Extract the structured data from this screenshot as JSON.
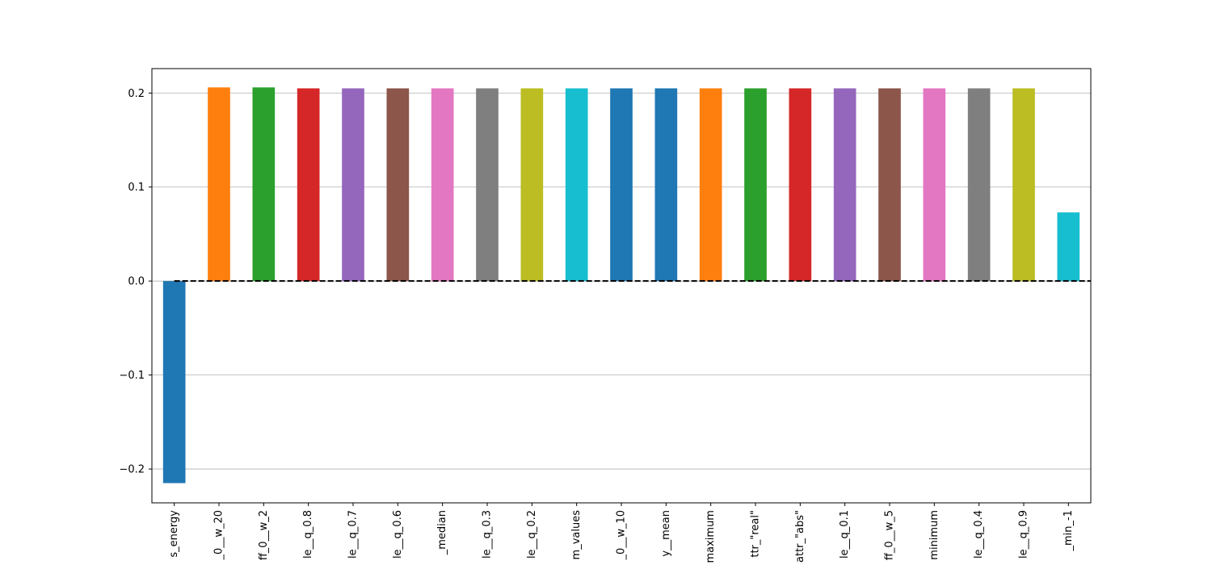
{
  "chart_data": {
    "type": "bar",
    "categories": [
      "s_energy",
      "_0__w_20",
      "ff_0__w_2",
      "le__q_0.8",
      "le__q_0.7",
      "le__q_0.6",
      "_median",
      "le__q_0.3",
      "le__q_0.2",
      "m_values",
      "_0__w_10",
      "y__mean",
      "maximum",
      "ttr_\"real\"",
      "attr_\"abs\"",
      "le__q_0.1",
      "ff_0__w_5",
      "minimum",
      "le__q_0.4",
      "le__q_0.9",
      "_min_-1"
    ],
    "values": [
      -0.215,
      0.206,
      0.206,
      0.205,
      0.205,
      0.205,
      0.205,
      0.205,
      0.205,
      0.205,
      0.205,
      0.205,
      0.205,
      0.205,
      0.205,
      0.205,
      0.205,
      0.205,
      0.205,
      0.205,
      0.073
    ],
    "colors": [
      "#1f77b4",
      "#ff7f0e",
      "#2ca02c",
      "#d62728",
      "#9467bd",
      "#8c564b",
      "#e377c2",
      "#7f7f7f",
      "#bcbd22",
      "#17becf",
      "#1f77b4",
      "#1f77b4",
      "#ff7f0e",
      "#2ca02c",
      "#d62728",
      "#9467bd",
      "#8c564b",
      "#e377c2",
      "#7f7f7f",
      "#bcbd22",
      "#17becf"
    ],
    "title": "",
    "xlabel": "",
    "ylabel": "",
    "ylim": [
      -0.236,
      0.226
    ],
    "yticks": [
      -0.2,
      -0.1,
      0.0,
      0.1,
      0.2
    ],
    "ytick_labels": [
      "−0.2",
      "−0.1",
      "0.0",
      "0.1",
      "0.2"
    ],
    "grid": "y",
    "zero_line": {
      "style": "dashed",
      "color": "#000000"
    },
    "legend": "none"
  }
}
